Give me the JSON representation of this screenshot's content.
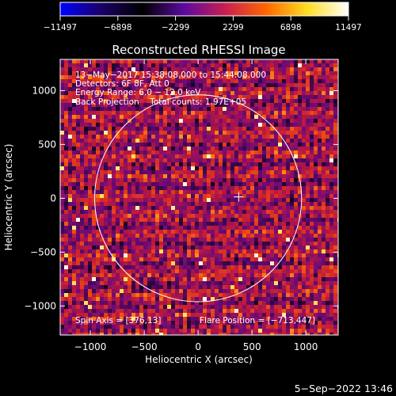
{
  "chart_data": {
    "type": "heatmap",
    "title": "Reconstructed RHESSI Image",
    "xlabel": "Heliocentric X (arcsec)",
    "ylabel": "Heliocentric Y (arcsec)",
    "xlim": [
      -1280,
      1300
    ],
    "ylim": [
      -1270,
      1290
    ],
    "xticks": [
      -1000,
      -500,
      0,
      500,
      1000
    ],
    "xtick_labels": [
      "−1000",
      "−500",
      "0",
      "500",
      "1000"
    ],
    "yticks": [
      -1000,
      -500,
      0,
      500,
      1000
    ],
    "ytick_labels": [
      "−1000",
      "−500",
      "0",
      "500",
      "1000"
    ],
    "colorbar": {
      "range": [
        -11497,
        11497
      ],
      "ticks": [
        -11497,
        -6898,
        -2299,
        2299,
        6898,
        11497
      ],
      "tick_labels": [
        "−11497",
        "−6898",
        "−2299",
        "2299",
        "6898",
        "11497"
      ],
      "colormap": [
        "#0000ff",
        "#1a0066",
        "#000000",
        "#5a0aa0",
        "#c81e50",
        "#ff6600",
        "#ffdd22",
        "#ffffff"
      ]
    },
    "info_lines": [
      "13−May−2017 15:38:08.000 to 15:44:08.000",
      "Detectors: 6F 8F, Att 0",
      "Energy Range: 6.0 − 12.0 keV",
      "Back Projection    Total counts: 1.97E+05"
    ],
    "spin_axis_text": "Spin Axis = [376,13]",
    "flare_position_text": "Flare Position = [−713,447]",
    "solar_disk": {
      "center": [
        0,
        0
      ],
      "radius_arcsec": 960,
      "color": "#ffffff"
    },
    "spin_axis_marker": [
      376,
      13
    ],
    "grid": false
  },
  "footer": {
    "date_text": "5−Sep−2022 13:46"
  }
}
